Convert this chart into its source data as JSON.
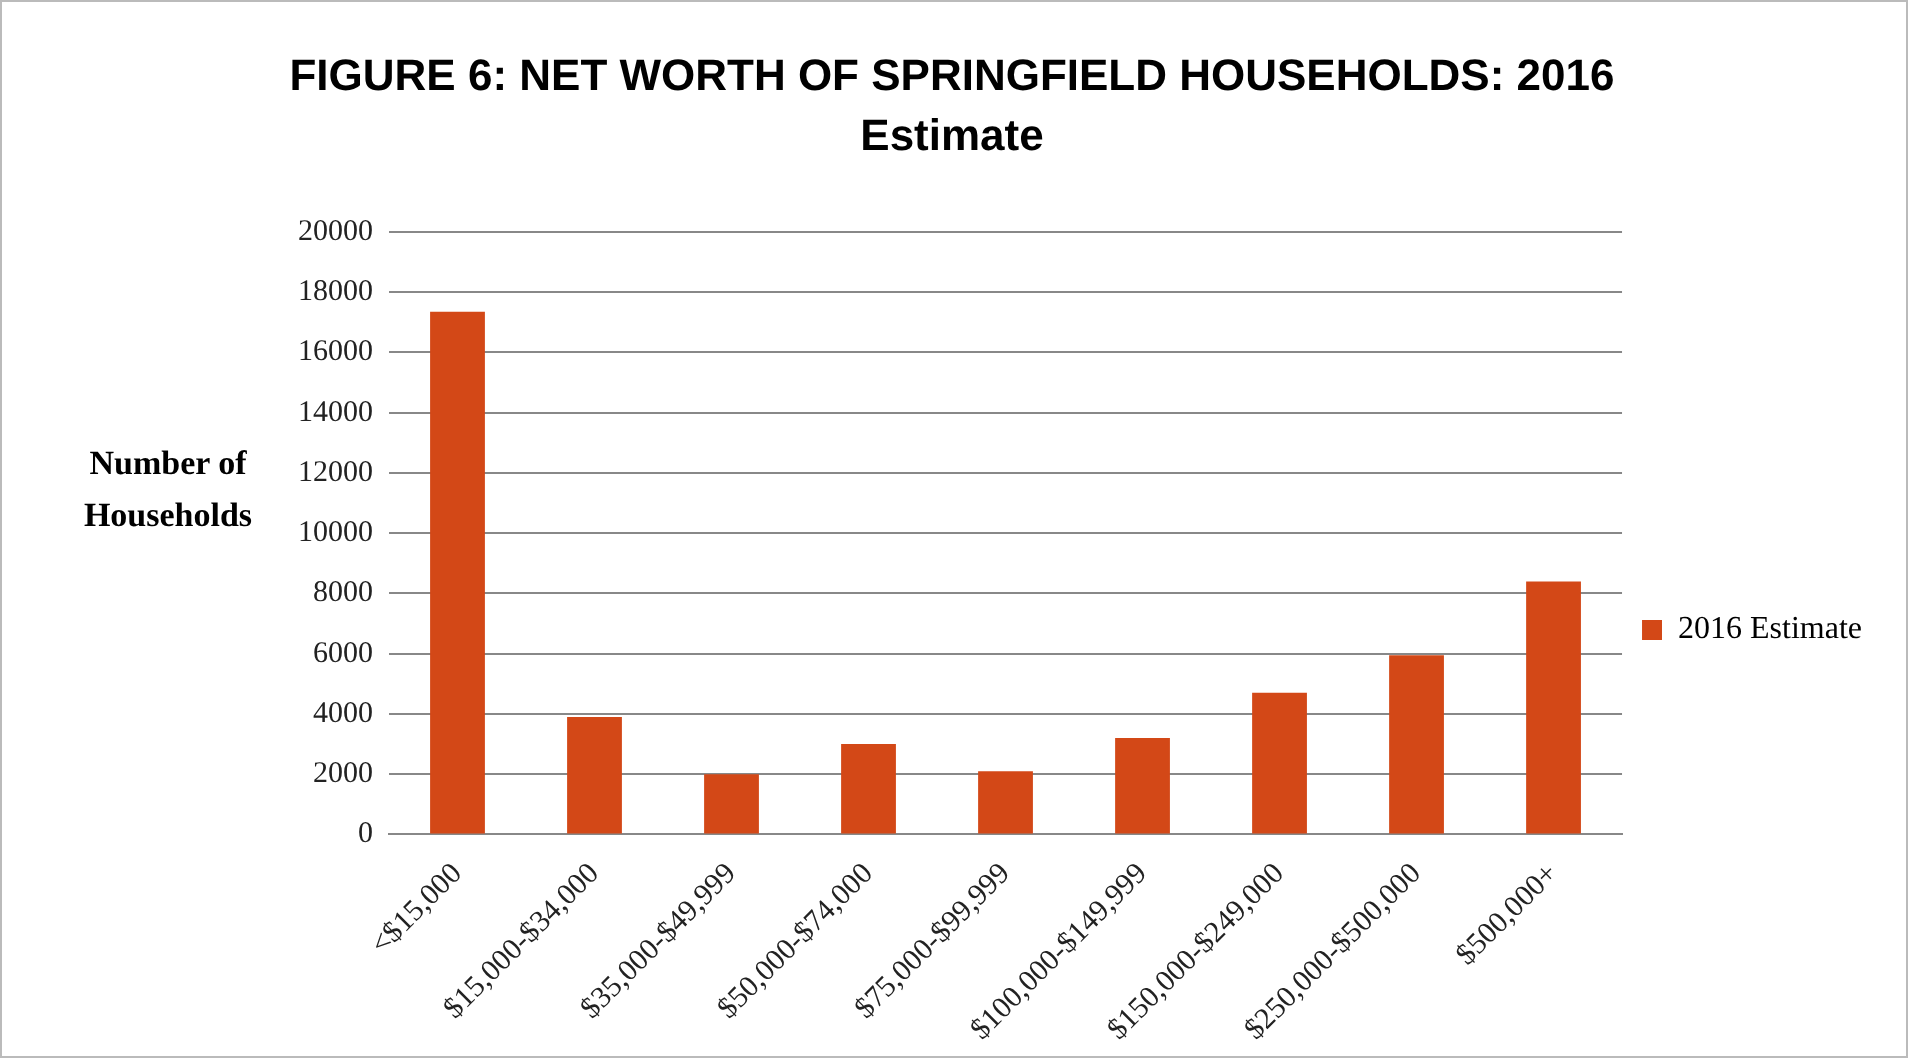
{
  "chart_data": {
    "type": "bar",
    "title": "FIGURE 6: NET WORTH OF SPRINGFIELD HOUSEHOLDS: 2016 Estimate",
    "ylabel": "Number of Households",
    "categories": [
      "<$15,000",
      "$15,000-$34,000",
      "$35,000-$49,999",
      "$50,000-$74,000",
      "$75,000-$99,999",
      "$100,000-$149,999",
      "$150,000-$249,000",
      "$250,000-$500,000",
      "$500,000+"
    ],
    "series": [
      {
        "name": "2016 Estimate",
        "color": "#d34817",
        "values": [
          17350,
          3900,
          2000,
          3000,
          2100,
          3200,
          4700,
          5950,
          8400
        ]
      }
    ],
    "ylim": [
      0,
      20000
    ],
    "yticks": [
      0,
      2000,
      4000,
      6000,
      8000,
      10000,
      12000,
      14000,
      16000,
      18000,
      20000
    ],
    "grid": "y",
    "legend": "right"
  }
}
